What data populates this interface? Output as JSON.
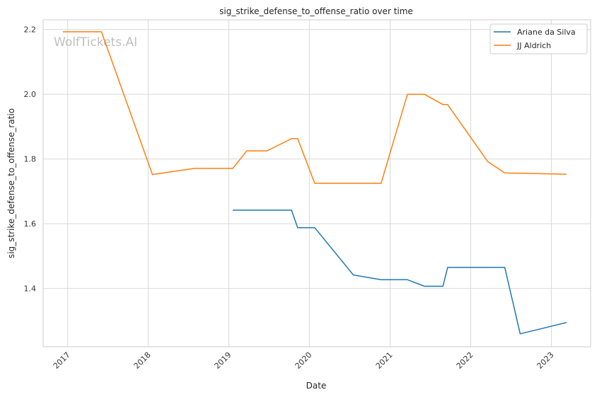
{
  "chart_data": {
    "type": "line",
    "title": "sig_strike_defense_to_offense_ratio over time",
    "xlabel": "Date",
    "ylabel": "sig_strike_defense_to_offense_ratio",
    "watermark": "WolfTickets.AI",
    "x_ticks": [
      "2017",
      "2018",
      "2019",
      "2020",
      "2021",
      "2022",
      "2023"
    ],
    "y_ticks": [
      "1.4",
      "1.6",
      "1.8",
      "2.0",
      "2.2"
    ],
    "xlim": [
      "2016-09-12",
      "2023-06-28"
    ],
    "ylim": [
      1.22,
      2.23
    ],
    "grid": true,
    "legend_position": "top-right",
    "series": [
      {
        "name": "Ariane da Silva",
        "color": "#1f77b4",
        "points": [
          [
            "2019-01-19",
            1.642
          ],
          [
            "2019-10-12",
            1.642
          ],
          [
            "2019-11-09",
            1.588
          ],
          [
            "2020-01-25",
            1.588
          ],
          [
            "2020-07-18",
            1.442
          ],
          [
            "2020-11-21",
            1.427
          ],
          [
            "2021-03-20",
            1.427
          ],
          [
            "2021-06-05",
            1.407
          ],
          [
            "2021-08-28",
            1.407
          ],
          [
            "2021-09-18",
            1.465
          ],
          [
            "2022-06-04",
            1.465
          ],
          [
            "2022-08-13",
            1.26
          ],
          [
            "2023-03-11",
            1.295
          ]
        ]
      },
      {
        "name": "JJ Aldrich",
        "color": "#ff7f0e",
        "points": [
          [
            "2016-12-10",
            2.193
          ],
          [
            "2017-06-03",
            2.193
          ],
          [
            "2018-01-20",
            1.752
          ],
          [
            "2018-07-28",
            1.771
          ],
          [
            "2019-01-19",
            1.771
          ],
          [
            "2019-03-23",
            1.825
          ],
          [
            "2019-06-22",
            1.825
          ],
          [
            "2019-10-12",
            1.863
          ],
          [
            "2019-11-09",
            1.863
          ],
          [
            "2020-01-25",
            1.725
          ],
          [
            "2020-11-21",
            1.725
          ],
          [
            "2021-03-20",
            2.0
          ],
          [
            "2021-06-05",
            2.0
          ],
          [
            "2021-08-28",
            1.968
          ],
          [
            "2021-09-18",
            1.968
          ],
          [
            "2022-03-19",
            1.792
          ],
          [
            "2022-06-04",
            1.757
          ],
          [
            "2023-03-11",
            1.753
          ]
        ]
      }
    ]
  }
}
